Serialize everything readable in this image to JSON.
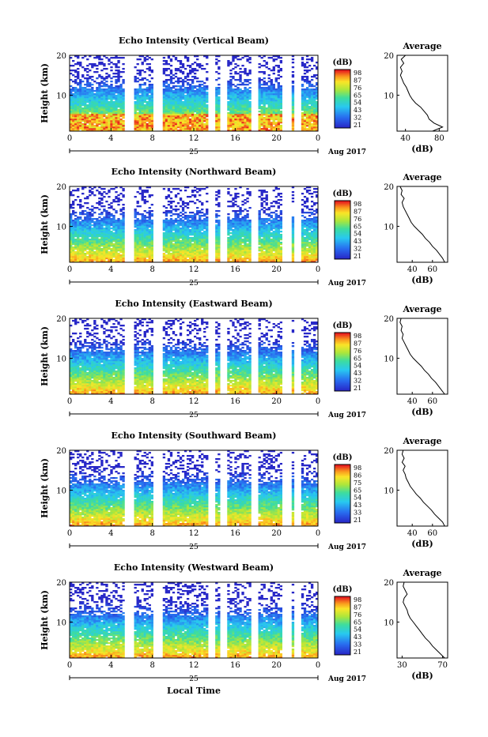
{
  "common": {
    "ylabel": "Height (km)",
    "xticks": [
      "0",
      "4",
      "8",
      "12",
      "16",
      "20",
      "0"
    ],
    "day_label": "25",
    "month_label": "Aug 2017",
    "local_time_label": "Local Time",
    "colorbar_unit": "(dB)",
    "average_title": "Average",
    "average_xlabel": "(dB)",
    "yticks": [
      "10",
      "20"
    ]
  },
  "chart_data": [
    {
      "type": "heatmap",
      "title": "Echo Intensity (Vertical Beam)",
      "colorbar_ticks": [
        "98",
        "87",
        "76",
        "65",
        "54",
        "43",
        "32",
        "21"
      ],
      "average": {
        "type": "line",
        "xticks": [
          "40",
          "80"
        ],
        "xlim": [
          30,
          90
        ],
        "ylim": [
          1,
          20
        ],
        "heights": [
          1,
          2,
          3,
          4,
          5,
          6,
          7,
          8,
          9,
          10,
          11,
          12,
          13,
          14,
          15,
          16,
          17,
          18,
          19,
          20
        ],
        "values": [
          72,
          84,
          74,
          68,
          66,
          62,
          58,
          52,
          48,
          45,
          43,
          41,
          38,
          36,
          34,
          36,
          34,
          38,
          35,
          40
        ]
      }
    },
    {
      "type": "heatmap",
      "title": "Echo Intensity (Northward Beam)",
      "colorbar_ticks": [
        "98",
        "87",
        "76",
        "65",
        "54",
        "43",
        "32",
        "21"
      ],
      "average": {
        "type": "line",
        "xticks": [
          "40",
          "60"
        ],
        "xlim": [
          25,
          75
        ],
        "ylim": [
          1,
          20
        ],
        "heights": [
          1,
          2,
          3,
          4,
          5,
          6,
          7,
          8,
          9,
          10,
          11,
          12,
          13,
          14,
          15,
          16,
          17,
          18,
          19,
          20
        ],
        "values": [
          72,
          70,
          67,
          64,
          60,
          57,
          53,
          50,
          46,
          42,
          39,
          37,
          35,
          33,
          31,
          30,
          32,
          29,
          30,
          28
        ]
      }
    },
    {
      "type": "heatmap",
      "title": "Echo Intensity (Eastward Beam)",
      "colorbar_ticks": [
        "98",
        "87",
        "76",
        "65",
        "54",
        "43",
        "32",
        "21"
      ],
      "average": {
        "type": "line",
        "xticks": [
          "40",
          "60"
        ],
        "xlim": [
          25,
          75
        ],
        "ylim": [
          1,
          20
        ],
        "heights": [
          1,
          2,
          3,
          4,
          5,
          6,
          7,
          8,
          9,
          10,
          11,
          12,
          13,
          14,
          15,
          16,
          17,
          18,
          19,
          20
        ],
        "values": [
          72,
          69,
          66,
          63,
          59,
          56,
          52,
          49,
          45,
          41,
          38,
          36,
          34,
          32,
          30,
          31,
          29,
          30,
          28,
          29
        ]
      }
    },
    {
      "type": "heatmap",
      "title": "Echo Intensity (Southward Beam)",
      "colorbar_ticks": [
        "98",
        "86",
        "75",
        "65",
        "54",
        "43",
        "33",
        "21"
      ],
      "average": {
        "type": "line",
        "xticks": [
          "40",
          "60"
        ],
        "xlim": [
          25,
          75
        ],
        "ylim": [
          1,
          20
        ],
        "heights": [
          1,
          2,
          3,
          4,
          5,
          6,
          7,
          8,
          9,
          10,
          11,
          12,
          13,
          14,
          15,
          16,
          17,
          18,
          19,
          20
        ],
        "values": [
          72,
          70,
          66,
          62,
          59,
          55,
          51,
          48,
          44,
          41,
          38,
          36,
          34,
          33,
          31,
          33,
          30,
          32,
          30,
          31
        ]
      }
    },
    {
      "type": "heatmap",
      "title": "Echo Intensity (Westward Beam)",
      "colorbar_ticks": [
        "98",
        "87",
        "76",
        "65",
        "54",
        "43",
        "33",
        "21"
      ],
      "average": {
        "type": "line",
        "xticks": [
          "30",
          "70"
        ],
        "xlim": [
          25,
          75
        ],
        "ylim": [
          1,
          20
        ],
        "heights": [
          1,
          2,
          3,
          4,
          5,
          6,
          7,
          8,
          9,
          10,
          11,
          12,
          13,
          14,
          15,
          16,
          17,
          18,
          19,
          20
        ],
        "values": [
          72,
          68,
          64,
          60,
          57,
          53,
          50,
          47,
          44,
          41,
          38,
          36,
          35,
          33,
          31,
          32,
          35,
          33,
          31,
          32
        ]
      }
    }
  ]
}
